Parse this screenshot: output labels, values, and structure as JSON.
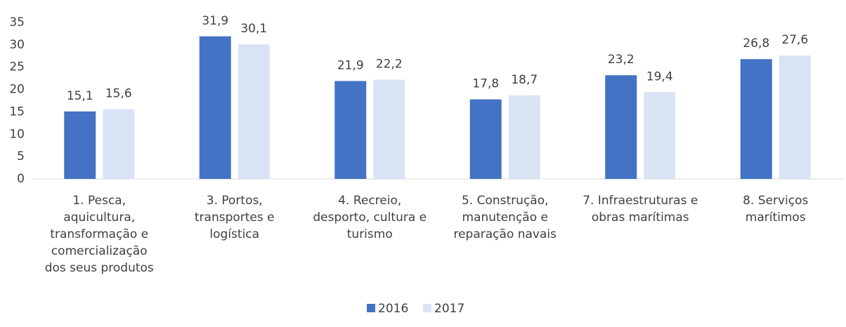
{
  "chart_data": {
    "type": "bar",
    "categories": [
      [
        "1. Pesca,",
        "aquicultura,",
        "transformação e",
        "comercialização",
        "dos seus produtos"
      ],
      [
        "3. Portos,",
        "transportes e",
        "logística"
      ],
      [
        "4. Recreio,",
        "desporto, cultura e",
        "turismo"
      ],
      [
        "5. Construção,",
        "manutenção e",
        "reparação navais"
      ],
      [
        "7. Infraestruturas e",
        "obras marítimas"
      ],
      [
        "8. Serviços",
        "marítimos"
      ]
    ],
    "series": [
      {
        "name": "2016",
        "color": "#4472c4",
        "values": [
          15.1,
          31.9,
          21.9,
          17.8,
          23.2,
          26.8
        ],
        "value_labels": [
          "15,1",
          "31,9",
          "21,9",
          "17,8",
          "23,2",
          "26,8"
        ]
      },
      {
        "name": "2017",
        "color": "#dae3f3",
        "values": [
          15.6,
          30.1,
          22.2,
          18.7,
          19.4,
          27.6
        ],
        "value_labels": [
          "15,6",
          "30,1",
          "22,2",
          "18,7",
          "19,4",
          "27,6"
        ]
      }
    ],
    "ylim": [
      0,
      35
    ],
    "yticks": [
      0,
      5,
      10,
      15,
      20,
      25,
      30,
      35
    ],
    "grid": false,
    "legend": "bottom"
  }
}
